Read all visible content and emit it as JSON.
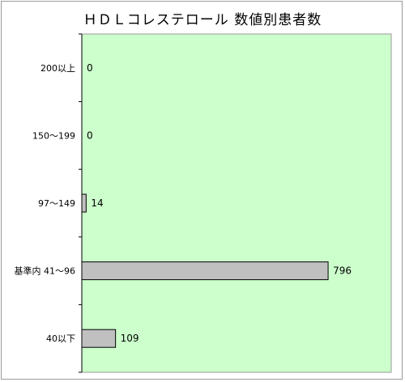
{
  "chart_data": {
    "type": "bar",
    "orientation": "horizontal",
    "title": "ＨＤＬコレステロール 数値別患者数",
    "categories": [
      "200以上",
      "150〜199",
      "97〜149",
      "基準内 41〜96",
      "40以下"
    ],
    "values": [
      0,
      0,
      14,
      796,
      109
    ],
    "xlim": [
      0,
      1000
    ],
    "grid": false,
    "colors": {
      "plot_background": "#ccffcc",
      "bar_fill": "#c0c0c0",
      "bar_stroke": "#000000"
    }
  }
}
